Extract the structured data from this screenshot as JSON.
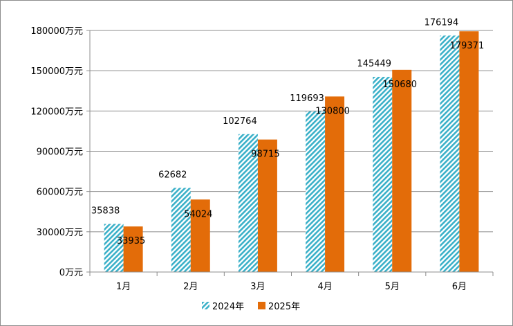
{
  "chart_data": {
    "type": "bar",
    "categories": [
      "1月",
      "2月",
      "3月",
      "4月",
      "5月",
      "6月"
    ],
    "series": [
      {
        "name": "2024年",
        "values": [
          35838,
          62682,
          102764,
          119693,
          145449,
          176194
        ],
        "color": "#3ab0c8",
        "pattern": "diagonal-hatch"
      },
      {
        "name": "2025年",
        "values": [
          33935,
          54024,
          98715,
          130800,
          150680,
          179371
        ],
        "color": "#e36c09",
        "pattern": "solid"
      }
    ],
    "ylim": [
      0,
      180000
    ],
    "yticks": [
      0,
      30000,
      60000,
      90000,
      120000,
      150000,
      180000
    ],
    "ytick_suffix": "万元",
    "grid": true,
    "legend": "bottom"
  }
}
